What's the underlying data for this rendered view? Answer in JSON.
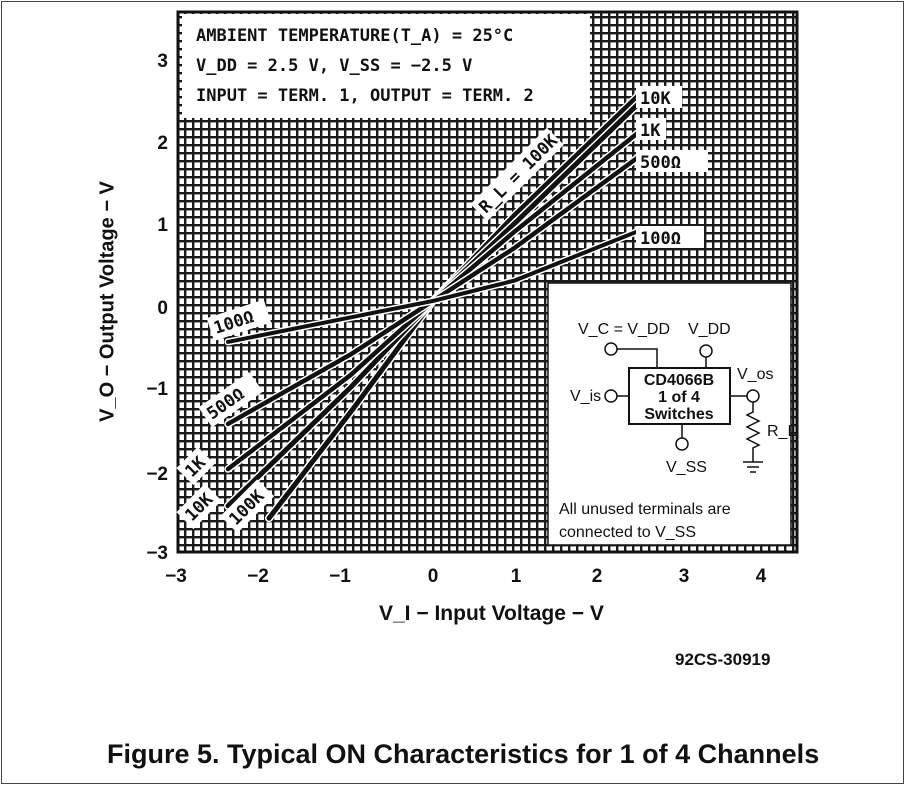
{
  "chart_data": {
    "type": "line",
    "xlabel": "V_I – Input Voltage – V",
    "ylabel": "V_O – Output Voltage – V",
    "xlim": [
      -3,
      4.5
    ],
    "ylim": [
      -3,
      3.5
    ],
    "xticks": [
      "−3",
      "−2",
      "−1",
      "0",
      "1",
      "2",
      "3",
      "4"
    ],
    "yticks": [
      "3",
      "2",
      "1",
      "0",
      "−1",
      "−2",
      "−3"
    ],
    "grid": true,
    "series": [
      {
        "name": "R_L = 100K",
        "x": [
          -2.0,
          -1.0,
          0.0,
          1.0,
          2.5
        ],
        "y": [
          -2.6,
          -1.3,
          0.05,
          1.1,
          2.55
        ]
      },
      {
        "name": "10K",
        "x": [
          -2.5,
          -1.0,
          0.0,
          1.0,
          2.5
        ],
        "y": [
          -2.45,
          -1.0,
          0.05,
          1.0,
          2.45
        ]
      },
      {
        "name": "1K",
        "x": [
          -2.5,
          -1.0,
          0.0,
          1.0,
          2.5
        ],
        "y": [
          -2.0,
          -0.85,
          0.05,
          0.9,
          2.1
        ]
      },
      {
        "name": "500Ω",
        "x": [
          -2.5,
          -1.0,
          0.0,
          1.0,
          2.5
        ],
        "y": [
          -1.45,
          -0.6,
          0.05,
          0.7,
          1.8
        ]
      },
      {
        "name": "100Ω",
        "x": [
          -2.5,
          -1.0,
          0.0,
          1.0,
          2.5
        ],
        "y": [
          -0.45,
          -0.15,
          0.05,
          0.3,
          0.9
        ]
      }
    ]
  },
  "conditions": {
    "line1": "AMBIENT TEMPERATURE(T_A) = 25°C",
    "line2": "V_DD = 2.5 V, V_SS = −2.5 V",
    "line3": "INPUT = TERM. 1, OUTPUT = TERM. 2"
  },
  "curve_labels": {
    "rl_100k": "R_L = 100K",
    "right_10k": "10K",
    "right_1k": "1K",
    "right_500": "500Ω",
    "right_100": "100Ω",
    "left_100": "100Ω",
    "left_500": "500Ω",
    "left_1k": "1K",
    "left_10k": "10K",
    "left_100k": "100K"
  },
  "schematic": {
    "vc": "V_C = V_DD",
    "vdd": "V_DD",
    "vos": "V_os",
    "vis": "V_is",
    "chip_line1": "CD4066B",
    "chip_line2": "1 of 4",
    "chip_line3": "Switches",
    "vss": "V_SS",
    "rl": "R_L",
    "note1": "All  unused  terminals  are",
    "note2": "connected to V_SS"
  },
  "labels": {
    "x_axis": "V_I − Input Voltage − V",
    "y_axis": "V_O − Output Voltage − V",
    "doc_id": "92CS-30919",
    "caption": "Figure 5. Typical ON Characteristics for 1 of 4 Channels"
  }
}
